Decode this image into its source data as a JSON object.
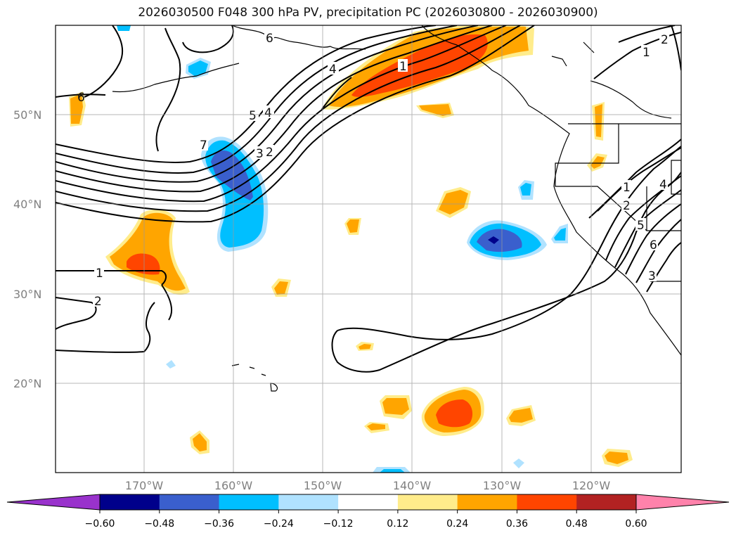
{
  "title": "2026030500 F048 300 hPa PV, precipitation PC (2026030800 - 2026030900)",
  "lat_labels": [
    "50°N",
    "40°N",
    "30°N",
    "20°N"
  ],
  "lon_labels": [
    "170°W",
    "160°W",
    "150°W",
    "140°W",
    "130°W",
    "120°W"
  ],
  "colorbar": {
    "colors": [
      "#9932cc",
      "#00008b",
      "#3a5fcd",
      "#00bfff",
      "#b0e2ff",
      "#ffffff",
      "#ffec8b",
      "#ffa500",
      "#ff4500",
      "#b22222",
      "#ff82ab"
    ],
    "tick_labels": [
      "−0.60",
      "−0.48",
      "−0.36",
      "−0.24",
      "−0.12",
      "0.12",
      "0.24",
      "0.36",
      "0.48",
      "0.60"
    ]
  },
  "contour_labels": [
    "6",
    "6",
    "5",
    "4",
    "1",
    "7",
    "3",
    "2",
    "1",
    "1",
    "2",
    "4",
    "2",
    "5",
    "6",
    "3",
    "1",
    "2"
  ]
}
